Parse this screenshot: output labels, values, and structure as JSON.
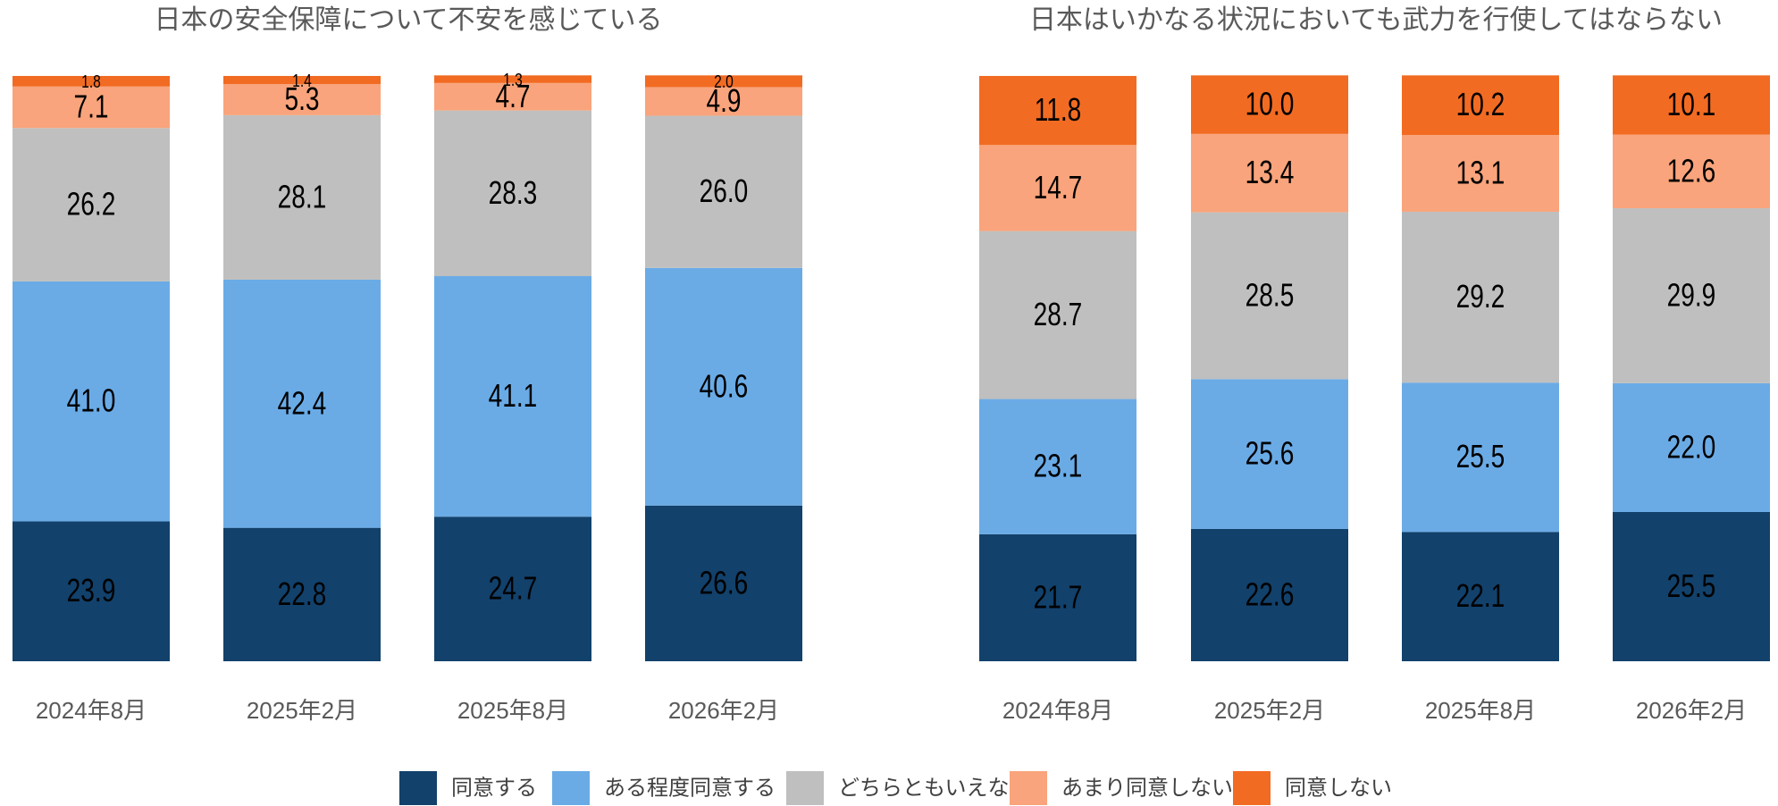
{
  "chart_data": [
    {
      "type": "bar",
      "stacked": true,
      "title": "日本の安全保障について不安を感じている",
      "categories": [
        "2024年8月",
        "2025年2月",
        "2025年8月",
        "2026年2月"
      ],
      "ylim": [
        0,
        100
      ],
      "series": [
        {
          "name": "同意する",
          "color": "#12416b",
          "values": [
            23.9,
            22.8,
            24.7,
            26.6
          ],
          "value_labels": [
            "23.9",
            "22.8",
            "24.7",
            "26.6"
          ]
        },
        {
          "name": "ある程度同意する",
          "color": "#6aabe6",
          "values": [
            41.0,
            42.4,
            41.1,
            40.6
          ],
          "value_labels": [
            "41.0",
            "42.4",
            "41.1",
            "40.6"
          ]
        },
        {
          "name": "どちらともいえない",
          "color": "#bfbfbf",
          "values": [
            26.2,
            28.1,
            28.3,
            26.0
          ],
          "value_labels": [
            "26.2",
            "28.1",
            "28.3",
            "26.0"
          ]
        },
        {
          "name": "あまり同意しない",
          "color": "#f9a47c",
          "values": [
            7.1,
            5.3,
            4.7,
            4.9
          ],
          "value_labels": [
            "7.1",
            "5.3",
            "4.7",
            "4.9"
          ]
        },
        {
          "name": "同意しない",
          "color": "#f26b22",
          "values": [
            1.8,
            1.4,
            1.3,
            2.0
          ],
          "value_labels": [
            "1.8",
            "1.4",
            "1.3",
            "2.0"
          ]
        }
      ]
    },
    {
      "type": "bar",
      "stacked": true,
      "title": "日本はいかなる状況においても武力を行使してはならない",
      "categories": [
        "2024年8月",
        "2025年2月",
        "2025年8月",
        "2026年2月"
      ],
      "ylim": [
        0,
        100
      ],
      "series": [
        {
          "color": "#12416b",
          "values": [
            21.7,
            22.6,
            22.1,
            25.5
          ],
          "value_labels": [
            "21.7",
            "22.6",
            "22.1",
            "25.5"
          ]
        },
        {
          "color": "#6aabe6",
          "values": [
            23.1,
            25.6,
            25.5,
            22.0
          ],
          "value_labels": [
            "23.1",
            "25.6",
            "25.5",
            "22.0"
          ]
        },
        {
          "color": "#bfbfbf",
          "values": [
            28.7,
            28.5,
            29.2,
            29.9
          ],
          "value_labels": [
            "28.7",
            "28.5",
            "29.2",
            "29.9"
          ]
        },
        {
          "color": "#f9a47c",
          "values": [
            14.7,
            13.4,
            13.1,
            12.6
          ],
          "value_labels": [
            "14.7",
            "13.4",
            "13.1",
            "12.6"
          ]
        },
        {
          "color": "#f26b22",
          "values": [
            11.8,
            10.0,
            10.2,
            10.1
          ],
          "value_labels": [
            "11.8",
            "10.0",
            "10.2",
            "10.1"
          ]
        }
      ]
    }
  ]
}
